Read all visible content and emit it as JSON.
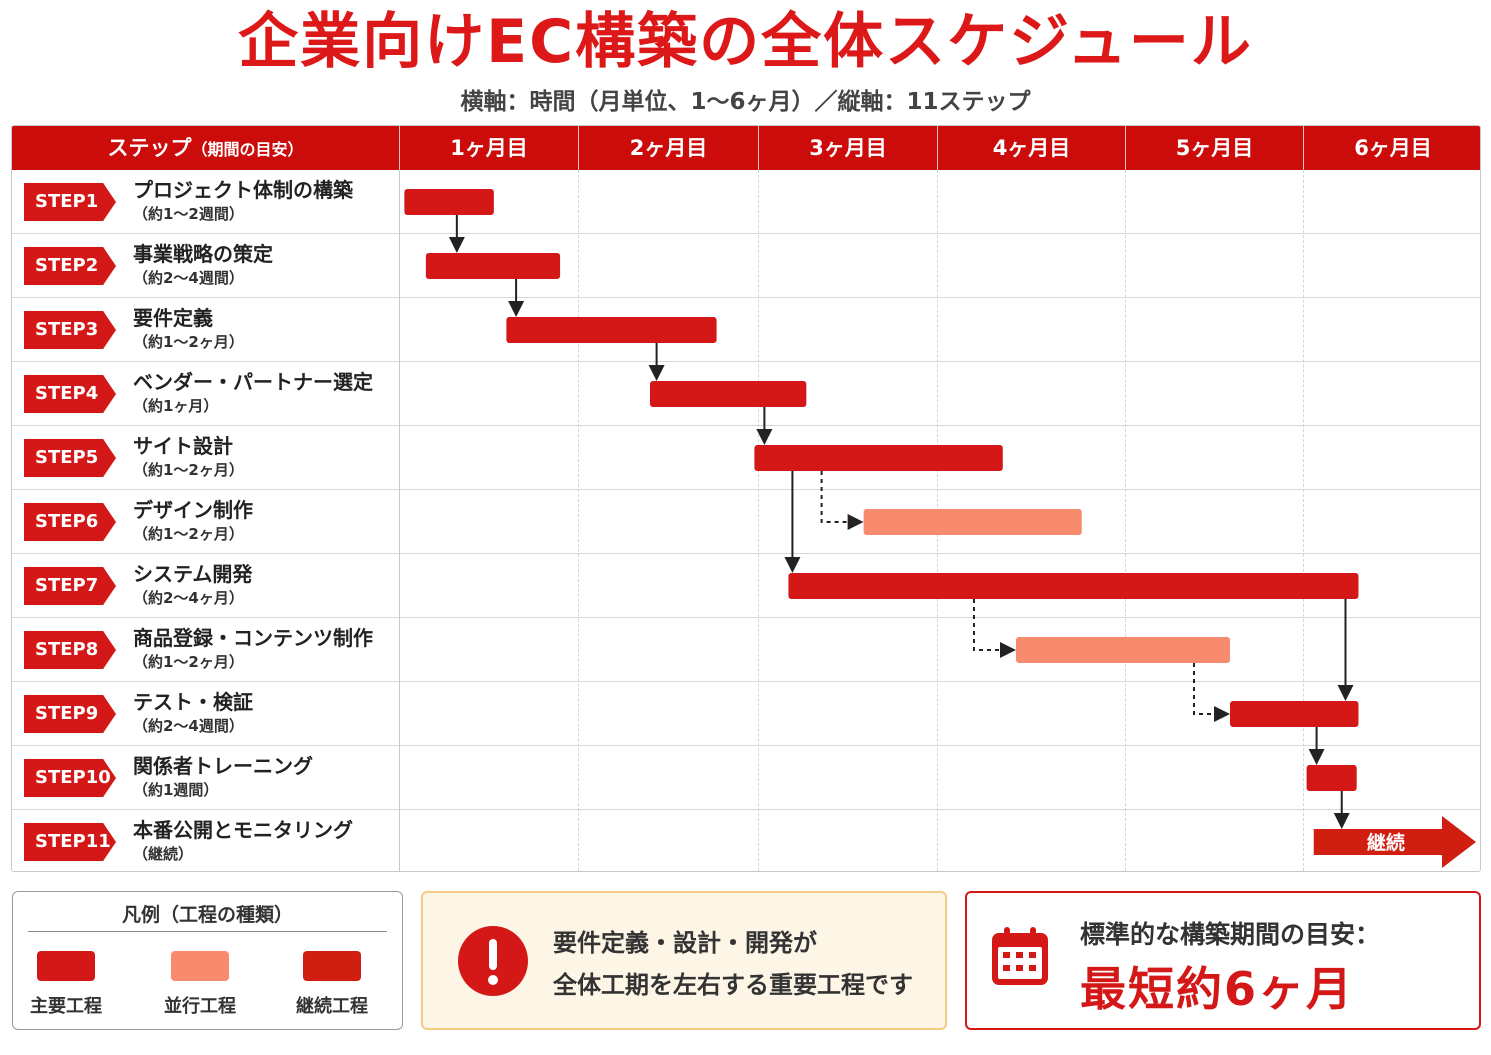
{
  "title": "企業向けEC構築の全体スケジュール",
  "subtitle": "横軸：時間（月単位、1〜6ヶ月）／縦軸：11ステップ",
  "table": {
    "step_header_main": "ステップ",
    "step_header_sub": "（期間の目安）"
  },
  "colors": {
    "header_red": "#cc0b0b",
    "main_bar": "#d41717",
    "parallel_bar": "#f88a6e",
    "continue_bar": "#d01e10",
    "note_bg": "#fdf5e6"
  },
  "chart_data": {
    "type": "gantt",
    "x_unit": "month",
    "xlim": [
      0,
      6
    ],
    "months": [
      "1ヶ月目",
      "2ヶ月目",
      "3ヶ月目",
      "4ヶ月目",
      "5ヶ月目",
      "6ヶ月目"
    ],
    "steps": [
      {
        "id": "STEP1",
        "name": "プロジェクト体制の構築",
        "duration": "（約1〜2週間）",
        "start": 0.03,
        "end": 0.53,
        "kind": "main"
      },
      {
        "id": "STEP2",
        "name": "事業戦略の策定",
        "duration": "（約2〜4週間）",
        "start": 0.15,
        "end": 0.9,
        "kind": "main"
      },
      {
        "id": "STEP3",
        "name": "要件定義",
        "duration": "（約1〜2ヶ月）",
        "start": 0.6,
        "end": 1.77,
        "kind": "main"
      },
      {
        "id": "STEP4",
        "name": "ベンダー・パートナー選定",
        "duration": "（約1ヶ月）",
        "start": 1.4,
        "end": 2.27,
        "kind": "main"
      },
      {
        "id": "STEP5",
        "name": "サイト設計",
        "duration": "（約1〜2ヶ月）",
        "start": 1.98,
        "end": 3.35,
        "kind": "main"
      },
      {
        "id": "STEP6",
        "name": "デザイン制作",
        "duration": "（約1〜2ヶ月）",
        "start": 2.59,
        "end": 3.77,
        "kind": "parallel"
      },
      {
        "id": "STEP7",
        "name": "システム開発",
        "duration": "（約2〜4ヶ月）",
        "start": 2.17,
        "end": 5.31,
        "kind": "main"
      },
      {
        "id": "STEP8",
        "name": "商品登録・コンテンツ制作",
        "duration": "（約1〜2ヶ月）",
        "start": 3.42,
        "end": 4.59,
        "kind": "parallel"
      },
      {
        "id": "STEP9",
        "name": "テスト・検証",
        "duration": "（約2〜4週間）",
        "start": 4.59,
        "end": 5.31,
        "kind": "main"
      },
      {
        "id": "STEP10",
        "name": "関係者トレーニング",
        "duration": "（約1週間）",
        "start": 5.02,
        "end": 5.3,
        "kind": "main"
      },
      {
        "id": "STEP11",
        "name": "本番公開とモニタリング",
        "duration": "（継続）",
        "start": 5.06,
        "end": 6.0,
        "kind": "continue",
        "label": "継続"
      }
    ],
    "dependencies": [
      {
        "from": "STEP1",
        "to": "STEP2",
        "style": "solid"
      },
      {
        "from": "STEP2",
        "to": "STEP3",
        "style": "solid"
      },
      {
        "from": "STEP3",
        "to": "STEP4",
        "style": "solid"
      },
      {
        "from": "STEP4",
        "to": "STEP5",
        "style": "solid"
      },
      {
        "from": "STEP5",
        "to": "STEP6",
        "style": "dotted"
      },
      {
        "from": "STEP5",
        "to": "STEP7",
        "style": "solid"
      },
      {
        "from": "STEP7",
        "to": "STEP8",
        "style": "dotted"
      },
      {
        "from": "STEP8",
        "to": "STEP9",
        "style": "dotted"
      },
      {
        "from": "STEP7",
        "to": "STEP9",
        "style": "solid"
      },
      {
        "from": "STEP9",
        "to": "STEP10",
        "style": "solid"
      },
      {
        "from": "STEP10",
        "to": "STEP11",
        "style": "solid"
      }
    ]
  },
  "legend": {
    "title": "凡例（工程の種類）",
    "items": [
      {
        "label": "主要工程",
        "color": "#d41717"
      },
      {
        "label": "並行工程",
        "color": "#f88a6e"
      },
      {
        "label": "継続工程",
        "color": "#d01e10"
      }
    ]
  },
  "note": {
    "line1": "要件定義・設計・開発が",
    "line2": "全体工期を左右する重要工程です",
    "icon": "exclamation-icon"
  },
  "target": {
    "label": "標準的な構築期間の目安：",
    "value": "最短約6ヶ月",
    "icon": "calendar-icon"
  }
}
